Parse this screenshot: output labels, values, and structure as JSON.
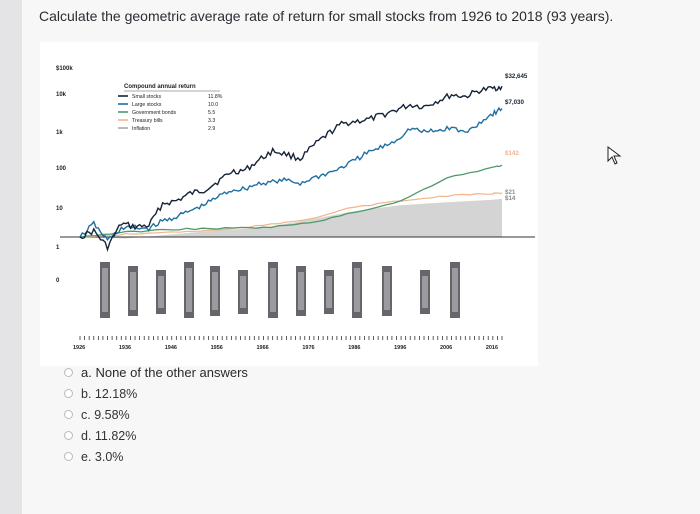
{
  "question": "Calculate the geometric average rate of return for small stocks from 1926 to 2018 (93 years).",
  "chart_data": {
    "type": "line",
    "y_scale": "log",
    "y_ticks": [
      "$100k",
      "10k",
      "1k",
      "100",
      "10",
      "1",
      "0"
    ],
    "x_ticks": [
      "1926",
      "1936",
      "1946",
      "1956",
      "1966",
      "1976",
      "1986",
      "1996",
      "2006",
      "2016"
    ],
    "legend_title": "Compound annual return",
    "legend": [
      {
        "name": "Small stocks",
        "value": "11.8%",
        "color": "#142337"
      },
      {
        "name": "Large stocks",
        "value": "10.0",
        "color": "#1f6f9f"
      },
      {
        "name": "Government bonds",
        "value": "5.5",
        "color": "#4e9a6a"
      },
      {
        "name": "Treasury bills",
        "value": "3.3",
        "color": "#f2b48a"
      },
      {
        "name": "Inflation",
        "value": "2.9",
        "color": "#a9a9a9"
      }
    ],
    "end_labels": [
      "$32,645",
      "$7,030",
      "$142",
      "$21",
      "$14"
    ],
    "series": [
      {
        "name": "Small stocks",
        "x": [
          1926,
          1929,
          1932,
          1935,
          1938,
          1941,
          1944,
          1947,
          1950,
          1953,
          1956,
          1959,
          1962,
          1965,
          1968,
          1971,
          1974,
          1977,
          1980,
          1983,
          1986,
          1989,
          1992,
          1995,
          1998,
          2001,
          2004,
          2007,
          2010,
          2013,
          2016,
          2018
        ],
        "y": [
          1,
          1.5,
          0.5,
          2.5,
          2,
          2.2,
          10,
          12,
          20,
          25,
          45,
          90,
          100,
          200,
          380,
          300,
          220,
          550,
          1200,
          2400,
          2900,
          3300,
          4500,
          6500,
          9000,
          8000,
          12000,
          18000,
          16000,
          24000,
          28000,
          32645
        ]
      },
      {
        "name": "Large stocks",
        "x": [
          1926,
          1929,
          1932,
          1935,
          1938,
          1941,
          1944,
          1947,
          1950,
          1953,
          1956,
          1959,
          1962,
          1965,
          1968,
          1971,
          1974,
          1977,
          1980,
          1983,
          1986,
          1989,
          1992,
          1995,
          1998,
          2001,
          2004,
          2007,
          2010,
          2013,
          2016,
          2018
        ],
        "y": [
          1,
          2.5,
          0.8,
          1.8,
          1.9,
          1.8,
          3,
          4,
          6,
          9,
          16,
          25,
          28,
          40,
          45,
          50,
          40,
          60,
          80,
          120,
          200,
          350,
          500,
          800,
          1800,
          1400,
          1500,
          1900,
          1300,
          2600,
          5000,
          7030
        ]
      },
      {
        "name": "Government bonds",
        "x": [
          1926,
          1936,
          1946,
          1956,
          1966,
          1976,
          1986,
          1996,
          2006,
          2016,
          2018
        ],
        "y": [
          1,
          1.4,
          1.7,
          1.8,
          1.9,
          2.6,
          5.5,
          12,
          60,
          120,
          142
        ]
      },
      {
        "name": "Treasury bills",
        "x": [
          1926,
          1936,
          1946,
          1956,
          1966,
          1976,
          1986,
          1996,
          2006,
          2016,
          2018
        ],
        "y": [
          1,
          1.2,
          1.4,
          1.6,
          2.2,
          3.5,
          8,
          12,
          17,
          20,
          21
        ]
      },
      {
        "name": "Inflation",
        "x": [
          1926,
          1936,
          1946,
          1956,
          1966,
          1976,
          1986,
          1996,
          2006,
          2016,
          2018
        ],
        "y": [
          1,
          0.9,
          1.2,
          1.6,
          1.9,
          3.3,
          6,
          9,
          11,
          13,
          14
        ]
      }
    ],
    "event_panels": 13
  },
  "choices": [
    {
      "label": "a. None of the other answers"
    },
    {
      "label": "b. 12.18%"
    },
    {
      "label": "c. 9.58%"
    },
    {
      "label": "d. 11.82%"
    },
    {
      "label": "e. 3.0%"
    }
  ]
}
